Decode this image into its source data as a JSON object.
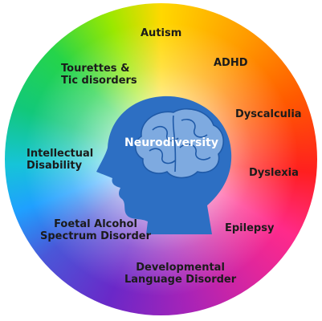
{
  "center": {
    "label": "Neurodiversity"
  },
  "conditions": [
    {
      "id": "autism",
      "lines": [
        "Autism"
      ]
    },
    {
      "id": "adhd",
      "lines": [
        "ADHD"
      ]
    },
    {
      "id": "dyscalculia",
      "lines": [
        "Dyscalculia"
      ]
    },
    {
      "id": "dyslexia",
      "lines": [
        "Dyslexia"
      ]
    },
    {
      "id": "epilepsy",
      "lines": [
        "Epilepsy"
      ]
    },
    {
      "id": "developmental-language-disorder",
      "lines": [
        "Developmental",
        "Language Disorder"
      ]
    },
    {
      "id": "foetal-alcohol-spectrum-disorder",
      "lines": [
        "Foetal Alcohol",
        "Spectrum Disorder"
      ]
    },
    {
      "id": "intellectual-disability",
      "lines": [
        "Intellectual",
        "Disability"
      ]
    },
    {
      "id": "tourettes-tic-disorders",
      "lines": [
        "Tourettes &",
        "Tic disorders"
      ]
    }
  ],
  "colors": {
    "head": "#2d6fc3",
    "brain": "#7eaae0",
    "brain_outline": "#1f5aa8",
    "label_text": "#1b1b1b",
    "center_text": "#ffffff"
  },
  "icons": {
    "head": "human-head-profile-icon",
    "brain": "brain-icon"
  }
}
